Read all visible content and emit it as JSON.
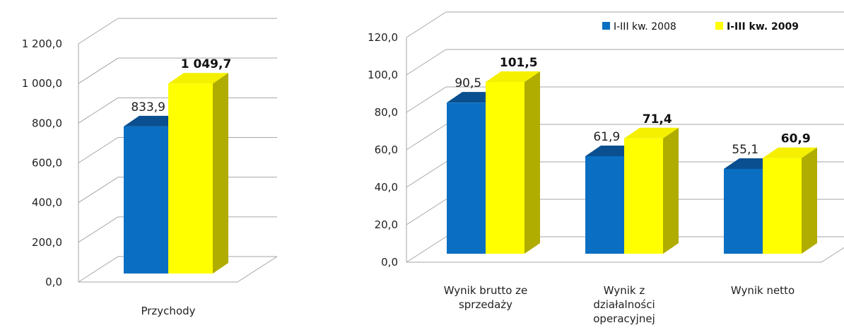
{
  "colors": {
    "s2008_front": "#0a6fc2",
    "s2008_top": "#0a4f8f",
    "s2008_side": "#0b5a9e",
    "s2009_front": "#ffff00",
    "s2009_top": "#f5f000",
    "s2009_side": "#b0ac00",
    "grid": "#a6a6a6"
  },
  "chart_data": [
    {
      "type": "bar",
      "title": "",
      "xlabel": "",
      "ylabel": "",
      "ylim": [
        0,
        1200
      ],
      "yticks": [
        "0,0",
        "200,0",
        "400,0",
        "600,0",
        "800,0",
        "1 000,0",
        "1 200,0"
      ],
      "categories": [
        [
          "Przychody"
        ]
      ],
      "series": [
        {
          "values": [
            833.9
          ],
          "labels": [
            "833,9"
          ]
        },
        {
          "values": [
            1049.7
          ],
          "labels": [
            "1 049,7"
          ]
        }
      ]
    },
    {
      "type": "bar",
      "title": "",
      "xlabel": "",
      "ylabel": "",
      "ylim": [
        0,
        120
      ],
      "yticks": [
        "0,0",
        "20,0",
        "40,0",
        "60,0",
        "80,0",
        "100,0",
        "120,0"
      ],
      "categories": [
        [
          "Wynik brutto ze",
          "sprzedaży"
        ],
        [
          "Wynik z",
          "działalności",
          "operacyjnej"
        ],
        [
          "Wynik netto"
        ]
      ],
      "legend_position": "top-right",
      "series": [
        {
          "name": "I-III kw. 2008",
          "values": [
            90.5,
            61.9,
            55.1
          ],
          "labels": [
            "90,5",
            "61,9",
            "55,1"
          ]
        },
        {
          "name": "I-III kw. 2009",
          "values": [
            101.5,
            71.4,
            60.9
          ],
          "labels": [
            "101,5",
            "71,4",
            "60,9"
          ]
        }
      ]
    }
  ]
}
